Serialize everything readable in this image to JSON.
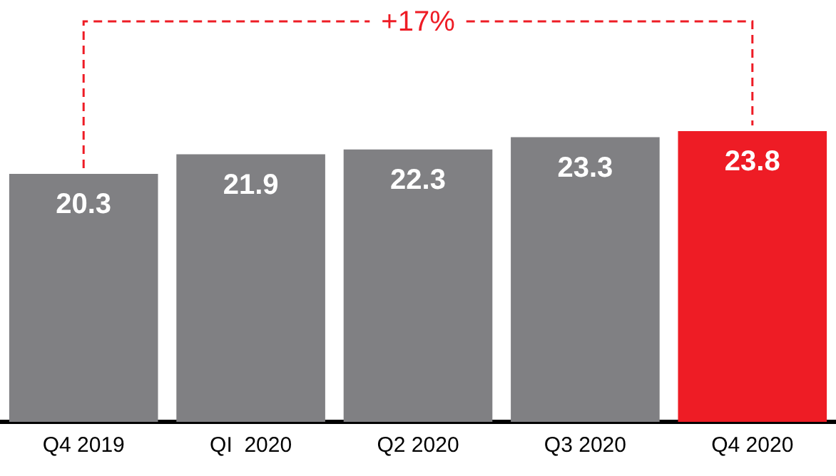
{
  "chart_data": {
    "type": "bar",
    "categories": [
      "Q4 2019",
      "QI  2020",
      "Q2 2020",
      "Q3 2020",
      "Q4 2020"
    ],
    "values": [
      20.3,
      21.9,
      22.3,
      23.3,
      23.8
    ],
    "colors": [
      "#808083",
      "#808083",
      "#808083",
      "#808083",
      "#ee1c25"
    ],
    "data_labels": true,
    "legend": false,
    "grid": false,
    "annotations": [
      "+17%"
    ]
  }
}
